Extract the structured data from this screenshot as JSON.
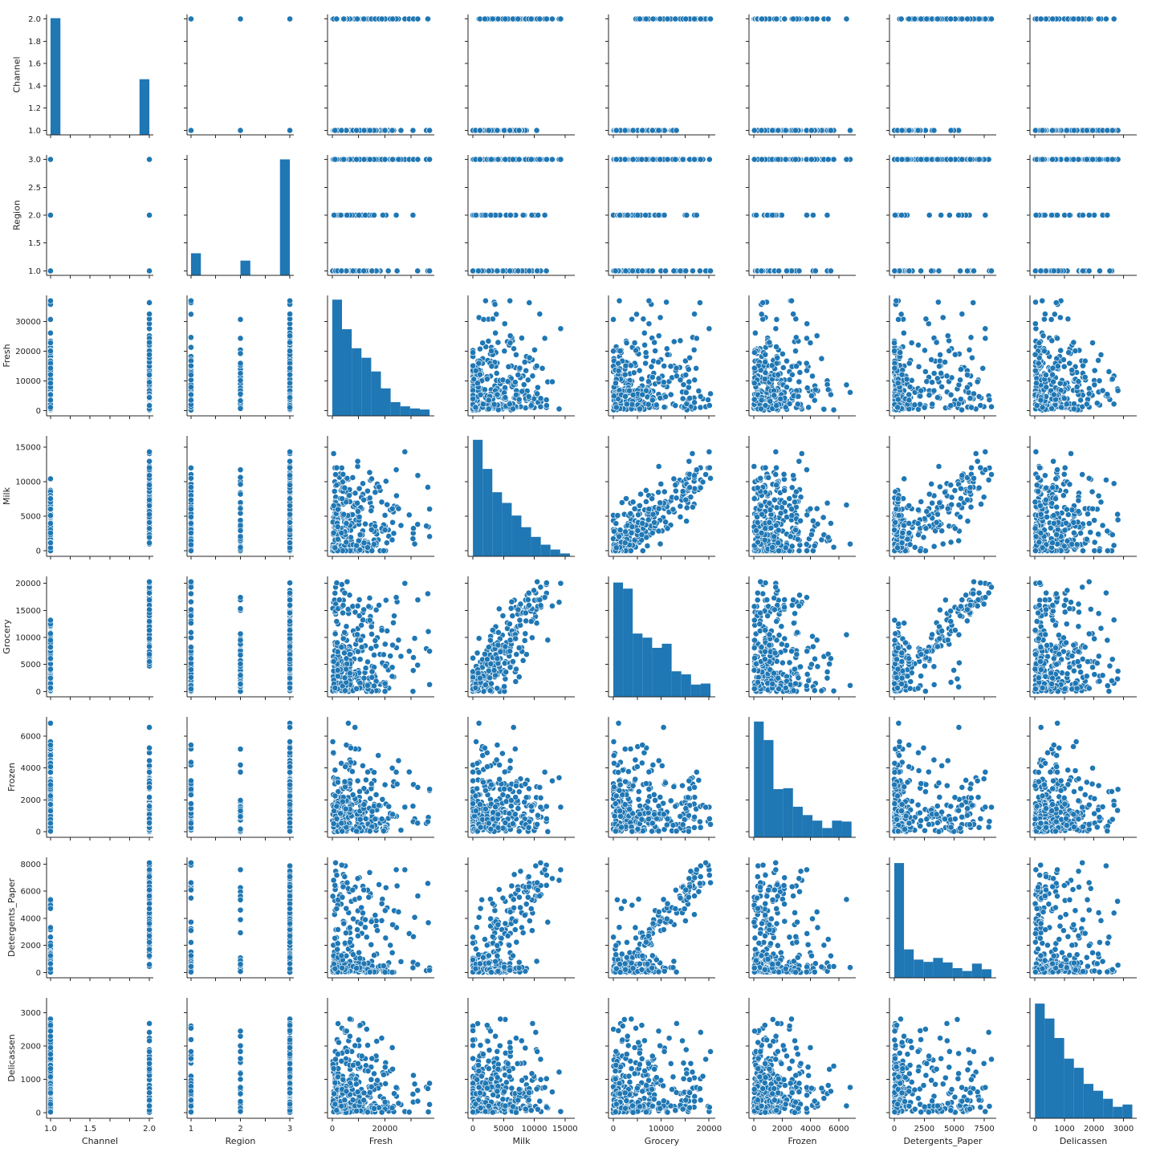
{
  "chart_data": {
    "type": "scatter",
    "kind": "pairplot",
    "variables": [
      "Channel",
      "Region",
      "Fresh",
      "Milk",
      "Grocery",
      "Frozen",
      "Detergents_Paper",
      "Delicassen"
    ],
    "point_color": "#1f77b4",
    "bar_color": "#1f77b4",
    "grid": false,
    "axes": {
      "Channel": {
        "range": [
          0.96,
          2.04
        ],
        "ticks": [
          1.0,
          1.2,
          1.4,
          1.6,
          1.8,
          2.0
        ],
        "x_tick_labels": [
          "1.0",
          "",
          "1.5",
          "",
          "",
          "2.0"
        ],
        "y_tick_labels": [
          "1.0",
          "1.2",
          "1.4",
          "1.6",
          "1.8",
          "2.0"
        ]
      },
      "Region": {
        "range": [
          0.92,
          3.08
        ],
        "ticks": [
          1.0,
          1.5,
          2.0,
          2.5,
          3.0
        ],
        "x_tick_labels": [
          "1",
          "",
          "2",
          "",
          "3"
        ],
        "y_tick_labels": [
          "1.0",
          "1.5",
          "2.0",
          "2.5",
          "3.0"
        ]
      },
      "Fresh": {
        "range": [
          -1800,
          38800
        ],
        "ticks": [
          0,
          10000,
          20000,
          30000
        ],
        "x_tick_labels": [
          "0",
          "",
          "20000",
          ""
        ],
        "y_tick_labels": [
          "0",
          "10000",
          "20000",
          "30000"
        ]
      },
      "Milk": {
        "range": [
          -800,
          16600
        ],
        "ticks": [
          0,
          5000,
          10000,
          15000
        ],
        "x_tick_labels": [
          "0",
          "5000",
          "10000",
          "15000"
        ],
        "y_tick_labels": [
          "0",
          "5000",
          "10000",
          "15000"
        ]
      },
      "Grocery": {
        "range": [
          -1000,
          21300
        ],
        "ticks": [
          0,
          5000,
          10000,
          15000,
          20000
        ],
        "x_tick_labels": [
          "0",
          "",
          "10000",
          "",
          "20000"
        ],
        "y_tick_labels": [
          "0",
          "5000",
          "10000",
          "15000",
          "20000"
        ]
      },
      "Frozen": {
        "range": [
          -350,
          7200
        ],
        "ticks": [
          0,
          2000,
          4000,
          6000
        ],
        "x_tick_labels": [
          "0",
          "2000",
          "4000",
          "6000"
        ],
        "y_tick_labels": [
          "0",
          "2000",
          "4000",
          "6000"
        ]
      },
      "Detergents_Paper": {
        "range": [
          -400,
          8500
        ],
        "ticks": [
          0,
          2500,
          5000,
          7500
        ],
        "x_tick_labels": [
          "0",
          "2500",
          "5000",
          "7500"
        ],
        "y_tick_labels": [
          "0",
          "2000",
          "4000",
          "6000",
          "8000"
        ],
        "y_ticks": [
          0,
          2000,
          4000,
          6000,
          8000
        ]
      },
      "Delicassen": {
        "range": [
          -170,
          3450
        ],
        "ticks": [
          0,
          1000,
          2000,
          3000
        ],
        "x_tick_labels": [
          "0",
          "1000",
          "2000",
          "3000"
        ],
        "y_tick_labels": [
          "0",
          "1000",
          "2000",
          "3000"
        ]
      }
    },
    "histograms": {
      "Channel": {
        "bin_edges": [
          1.0,
          1.1,
          1.2,
          1.3,
          1.4,
          1.5,
          1.6,
          1.7,
          1.8,
          1.9,
          2.0
        ],
        "counts": [
          281,
          0,
          0,
          0,
          0,
          0,
          0,
          0,
          0,
          134
        ],
        "ylim": [
          0,
          290
        ]
      },
      "Region": {
        "bin_edges": [
          1.0,
          1.2,
          1.4,
          1.6,
          1.8,
          2.0,
          2.2,
          2.4,
          2.6,
          2.8,
          3.0
        ],
        "counts": [
          60,
          0,
          0,
          0,
          0,
          40,
          0,
          0,
          0,
          315
        ],
        "ylim": [
          0,
          327
        ]
      },
      "Fresh": {
        "bin_edges": [
          0,
          3700,
          7400,
          11100,
          14800,
          18500,
          22200,
          25900,
          29600,
          33300,
          37000
        ],
        "counts": [
          110,
          82,
          64,
          55,
          42,
          26,
          13,
          9,
          7,
          6
        ],
        "ylim": [
          0,
          114
        ]
      },
      "Milk": {
        "bin_edges": [
          0,
          1580,
          3160,
          4740,
          6320,
          7900,
          9480,
          11060,
          12640,
          14220,
          15800
        ],
        "counts": [
          120,
          90,
          66,
          55,
          42,
          30,
          20,
          12,
          7,
          3
        ],
        "ylim": [
          0,
          124
        ]
      },
      "Grocery": {
        "bin_edges": [
          0,
          2030,
          4060,
          6090,
          8120,
          10150,
          12180,
          14210,
          16240,
          18270,
          20300
        ],
        "counts": [
          112,
          106,
          62,
          58,
          48,
          52,
          25,
          22,
          12,
          13
        ],
        "ylim": [
          0,
          118
        ]
      },
      "Frozen": {
        "bin_edges": [
          0,
          690,
          1380,
          2070,
          2760,
          3450,
          4140,
          4830,
          5520,
          6210,
          6900
        ],
        "counts": [
          125,
          105,
          52,
          53,
          33,
          24,
          18,
          10,
          18,
          17
        ],
        "ylim": [
          0,
          130
        ]
      },
      "Detergents_Paper": {
        "bin_edges": [
          0,
          810,
          1620,
          2430,
          3240,
          4050,
          4860,
          5670,
          6480,
          7290,
          8100
        ],
        "counts": [
          202,
          50,
          32,
          28,
          35,
          27,
          17,
          12,
          25,
          15
        ],
        "ylim": [
          0,
          212
        ]
      },
      "Delicassen": {
        "bin_edges": [
          0,
          330,
          660,
          990,
          1320,
          1650,
          1980,
          2310,
          2640,
          2970,
          3300
        ],
        "counts": [
          100,
          87,
          70,
          52,
          44,
          30,
          24,
          17,
          10,
          12
        ],
        "ylim": [
          0,
          105
        ]
      }
    }
  }
}
